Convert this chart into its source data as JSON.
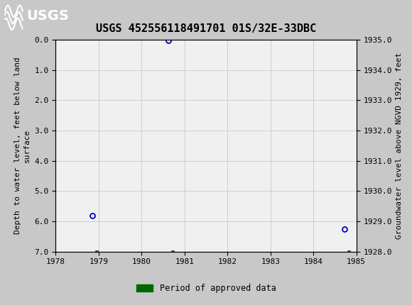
{
  "title": "USGS 452556118491701 01S/32E-33DBC",
  "header_bg_color": "#1a6b3c",
  "plot_bg_color": "#f0f0f0",
  "fig_bg_color": "#c8c8c8",
  "ylabel_left": "Depth to water level, feet below land\nsurface",
  "ylabel_right": "Groundwater level above NGVD 1929, feet",
  "xlim": [
    1978,
    1985
  ],
  "ylim_left": [
    7.0,
    0.0
  ],
  "ylim_right": [
    1928.0,
    1935.0
  ],
  "xticks": [
    1978,
    1979,
    1980,
    1981,
    1982,
    1983,
    1984,
    1985
  ],
  "yticks_left": [
    0.0,
    1.0,
    2.0,
    3.0,
    4.0,
    5.0,
    6.0,
    7.0
  ],
  "yticks_right": [
    1928.0,
    1929.0,
    1930.0,
    1931.0,
    1932.0,
    1933.0,
    1934.0,
    1935.0
  ],
  "circle_points_x": [
    1978.85,
    1980.62,
    1984.73
  ],
  "circle_points_y": [
    5.8,
    0.03,
    6.25
  ],
  "square_points_x": [
    1978.95,
    1980.72,
    1984.83
  ],
  "square_points_y": [
    7.0,
    7.0,
    7.0
  ],
  "circle_color": "#0000bb",
  "square_color": "#006600",
  "legend_label": "Period of approved data",
  "grid_color": "#cccccc",
  "title_fontsize": 11,
  "axis_fontsize": 8,
  "tick_fontsize": 8
}
